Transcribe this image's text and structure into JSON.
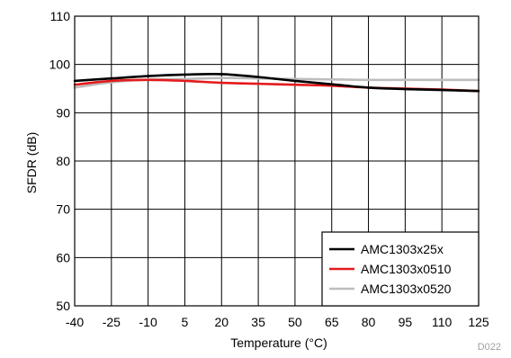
{
  "chart_data": {
    "type": "line",
    "xlabel": "Temperature (°C)",
    "ylabel": "SFDR (dB)",
    "xlim": [
      -40,
      125
    ],
    "ylim": [
      50,
      110
    ],
    "x_ticks": [
      -40,
      -25,
      -10,
      5,
      20,
      35,
      50,
      65,
      80,
      95,
      110,
      125
    ],
    "y_ticks": [
      50,
      60,
      70,
      80,
      90,
      100,
      110
    ],
    "grid": true,
    "legend_position": "bottom-right",
    "figure_id": "D022",
    "series": [
      {
        "name": "AMC1303x25x",
        "color": "#000000",
        "x": [
          -40,
          -25,
          -10,
          5,
          20,
          35,
          50,
          65,
          80,
          95,
          110,
          125
        ],
        "y": [
          96.6,
          97.1,
          97.6,
          97.9,
          98.0,
          97.4,
          96.6,
          95.9,
          95.2,
          94.9,
          94.7,
          94.5
        ]
      },
      {
        "name": "AMC1303x0510",
        "color": "#e41a1c",
        "x": [
          -40,
          -25,
          -10,
          5,
          20,
          35,
          50,
          65,
          80,
          95,
          110,
          125
        ],
        "y": [
          95.8,
          96.6,
          96.8,
          96.6,
          96.2,
          96.0,
          95.8,
          95.6,
          95.2,
          95.0,
          94.8,
          94.5
        ]
      },
      {
        "name": "AMC1303x0520",
        "color": "#bdbdbd",
        "x": [
          -40,
          -25,
          -10,
          5,
          20,
          35,
          50,
          65,
          80,
          95,
          110,
          125
        ],
        "y": [
          95.2,
          96.3,
          96.9,
          97.0,
          97.2,
          97.1,
          97.0,
          96.9,
          96.8,
          96.8,
          96.8,
          96.8
        ]
      }
    ]
  }
}
